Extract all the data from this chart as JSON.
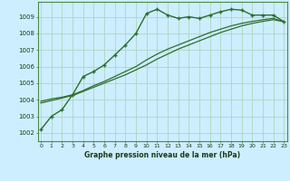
{
  "title": "Graphe pression niveau de la mer (hPa)",
  "bg_color": "#cceeff",
  "grid_color": "#b0d4c0",
  "line_color": "#2d6e2d",
  "x_ticks": [
    0,
    1,
    2,
    3,
    4,
    5,
    6,
    7,
    8,
    9,
    10,
    11,
    12,
    13,
    14,
    15,
    16,
    17,
    18,
    19,
    20,
    21,
    22,
    23
  ],
  "y_ticks": [
    1002,
    1003,
    1004,
    1005,
    1006,
    1007,
    1008,
    1009
  ],
  "xlim": [
    -0.3,
    23.3
  ],
  "ylim": [
    1001.5,
    1009.9
  ],
  "series1": [
    1002.2,
    1003.0,
    1003.4,
    1004.3,
    1005.4,
    1005.7,
    1006.1,
    1006.7,
    1007.3,
    1008.0,
    1009.2,
    1009.45,
    1009.1,
    1008.9,
    1009.0,
    1008.9,
    1009.1,
    1009.3,
    1009.45,
    1009.4,
    1009.1,
    1009.1,
    1009.1,
    1008.7
  ],
  "series2": [
    1003.9,
    1004.05,
    1004.15,
    1004.3,
    1004.55,
    1004.85,
    1005.1,
    1005.4,
    1005.7,
    1006.0,
    1006.4,
    1006.75,
    1007.05,
    1007.3,
    1007.55,
    1007.8,
    1008.05,
    1008.25,
    1008.45,
    1008.6,
    1008.72,
    1008.82,
    1008.9,
    1008.7
  ],
  "series3": [
    1003.8,
    1003.95,
    1004.1,
    1004.25,
    1004.5,
    1004.75,
    1005.0,
    1005.25,
    1005.5,
    1005.8,
    1006.1,
    1006.45,
    1006.75,
    1007.05,
    1007.3,
    1007.55,
    1007.8,
    1008.05,
    1008.25,
    1008.45,
    1008.6,
    1008.72,
    1008.82,
    1008.7
  ]
}
